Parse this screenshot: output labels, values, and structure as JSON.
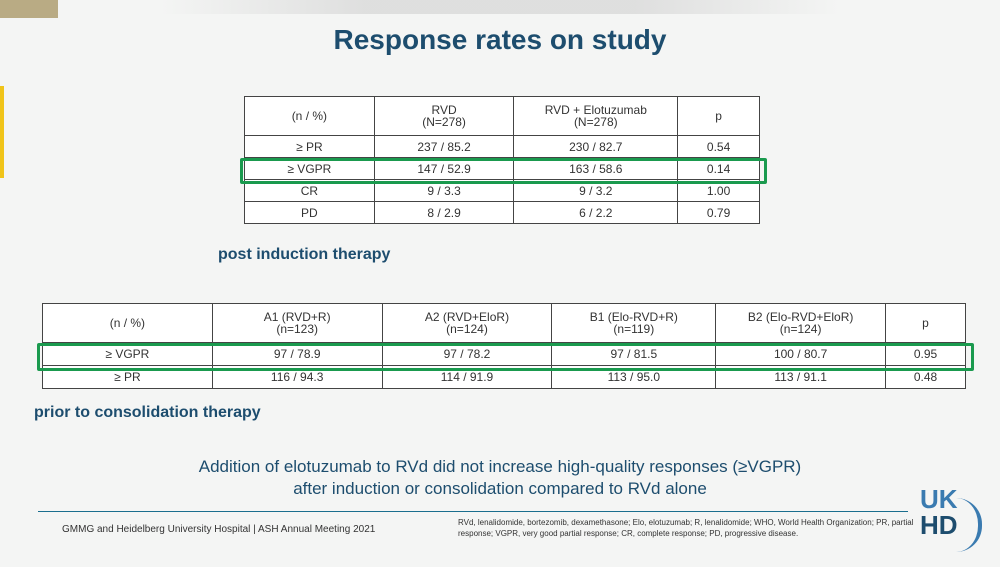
{
  "title": "Response rates on study",
  "table1": {
    "headers": [
      {
        "line1": "(n / %)",
        "line2": ""
      },
      {
        "line1": "RVD",
        "line2": "(N=278)"
      },
      {
        "line1": "RVD + Elotuzumab",
        "line2": "(N=278)"
      },
      {
        "line1": "p",
        "line2": ""
      }
    ],
    "rows": [
      [
        "≥ PR",
        "237 / 85.2",
        "230 / 82.7",
        "0.54"
      ],
      [
        "≥ VGPR",
        "147 / 52.9",
        "163 / 58.6",
        "0.14"
      ],
      [
        "CR",
        "9 / 3.3",
        "9 / 3.2",
        "1.00"
      ],
      [
        "PD",
        "8 / 2.9",
        "6 / 2.2",
        "0.79"
      ]
    ],
    "caption": "post induction therapy"
  },
  "table2": {
    "headers": [
      {
        "line1": "(n / %)",
        "line2": ""
      },
      {
        "line1": "A1 (RVD+R)",
        "line2": "(n=123)"
      },
      {
        "line1": "A2 (RVD+EloR)",
        "line2": "(n=124)"
      },
      {
        "line1": "B1 (Elo-RVD+R)",
        "line2": "(n=119)"
      },
      {
        "line1": "B2 (Elo-RVD+EloR)",
        "line2": "(n=124)"
      },
      {
        "line1": "p",
        "line2": ""
      }
    ],
    "rows": [
      [
        "≥ VGPR",
        "97 / 78.9",
        "97 / 78.2",
        "97 / 81.5",
        "100 / 80.7",
        "0.95"
      ],
      [
        "≥ PR",
        "116 / 94.3",
        "114 / 91.9",
        "113 / 95.0",
        "113 / 91.1",
        "0.48"
      ]
    ],
    "caption": "prior to consolidation therapy"
  },
  "conclusion": {
    "line1": "Addition of elotuzumab to RVd did not increase high-quality responses (≥VGPR)",
    "line2": "after induction or consolidation compared to RVd alone"
  },
  "footer": {
    "left": "GMMG and Heidelberg University Hospital | ASH Annual Meeting 2021",
    "right": "RVd, lenalidomide, bortezomib, dexamethasone; Elo, elotuzumab; R, lenalidomide; WHO, World Health Organization; PR, partial response; VGPR, very good partial response; CR, complete response; PD, progressive disease."
  },
  "logo": {
    "top": "UK",
    "bottom": "HD"
  },
  "colors": {
    "title": "#1d4d6e",
    "highlight": "#1a9a4e",
    "accent": "#f0c419"
  }
}
